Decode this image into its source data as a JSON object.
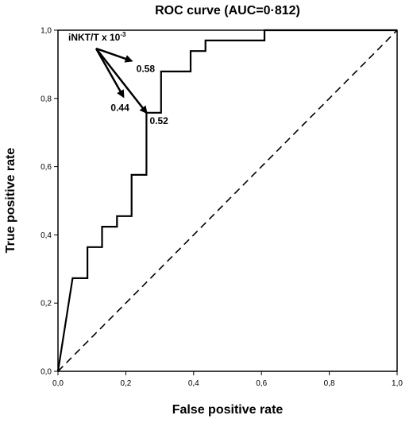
{
  "chart_data": {
    "type": "line",
    "title": "ROC curve (AUC=0·812)",
    "xlabel": "False positive rate",
    "ylabel": "True positive rate",
    "xlim": [
      0,
      1
    ],
    "ylim": [
      0,
      1
    ],
    "x_ticks": [
      0,
      0.2,
      0.4,
      0.6,
      0.8,
      1.0
    ],
    "y_ticks": [
      0,
      0.2,
      0.4,
      0.6,
      0.8,
      1.0
    ],
    "x_tick_labels": [
      "0,0",
      "0,2",
      "0,4",
      "0,6",
      "0,8",
      "1,0"
    ],
    "y_tick_labels": [
      "0,0",
      "0,2",
      "0,4",
      "0,6",
      "0,8",
      "1,0"
    ],
    "grid": false,
    "series": [
      {
        "style": "solid",
        "color": "#000000",
        "x": [
          0,
          0.043,
          0.087,
          0.087,
          0.13,
          0.13,
          0.174,
          0.174,
          0.217,
          0.217,
          0.261,
          0.261,
          0.304,
          0.304,
          0.391,
          0.391,
          0.435,
          0.435,
          0.609,
          0.609,
          1.0
        ],
        "y": [
          0,
          0.273,
          0.273,
          0.364,
          0.364,
          0.424,
          0.424,
          0.455,
          0.455,
          0.576,
          0.576,
          0.758,
          0.758,
          0.879,
          0.879,
          0.939,
          0.939,
          0.97,
          0.97,
          1.0,
          1.0
        ]
      },
      {
        "style": "dashed",
        "color": "#000000",
        "x": [
          0,
          1
        ],
        "y": [
          0,
          1
        ]
      }
    ],
    "annotation": {
      "label": "iNKT/T x 10",
      "superscript": "-3",
      "arrows": [
        {
          "text": "0.58",
          "x": 0.217,
          "y": 0.91
        },
        {
          "text": "0.44",
          "x": 0.193,
          "y": 0.805
        },
        {
          "text": "0.52",
          "x": 0.261,
          "y": 0.758
        }
      ]
    }
  }
}
